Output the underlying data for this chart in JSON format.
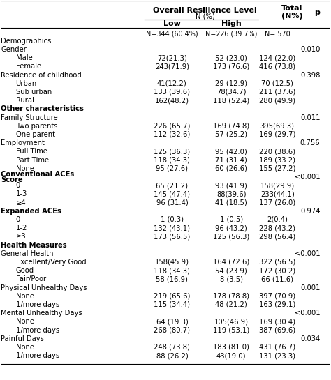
{
  "title1": "Overall Resilience Level",
  "title2": "N (%)",
  "col_low": "Low",
  "col_high": "High",
  "col_total": "Total\n(N%)",
  "col_p": "p",
  "subtitle_low": "N=344 (60.4%)",
  "subtitle_high": "N=226 (39.7%)",
  "subtitle_total": "N= 570",
  "rows": [
    {
      "label": "Demographics",
      "indent": 0,
      "bold": false,
      "low": "",
      "high": "",
      "total": "",
      "p": ""
    },
    {
      "label": "Gender",
      "indent": 0,
      "bold": false,
      "low": "",
      "high": "",
      "total": "",
      "p": "0.010"
    },
    {
      "label": "Male",
      "indent": 1,
      "bold": false,
      "low": "72(21.3)",
      "high": "52 (23.0)",
      "total": "124 (22.0)",
      "p": ""
    },
    {
      "label": "Female",
      "indent": 1,
      "bold": false,
      "low": "243(71.9)",
      "high": "173 (76.6)",
      "total": "416 (73.8)",
      "p": ""
    },
    {
      "label": "Residence of childhood",
      "indent": 0,
      "bold": false,
      "low": "",
      "high": "",
      "total": "",
      "p": "0.398"
    },
    {
      "label": "Urban",
      "indent": 1,
      "bold": false,
      "low": "41(12.2)",
      "high": "29 (12.9)",
      "total": "70 (12.5)",
      "p": ""
    },
    {
      "label": "Sub urban",
      "indent": 1,
      "bold": false,
      "low": "133 (39.6)",
      "high": "78(34.7)",
      "total": "211 (37.6)",
      "p": ""
    },
    {
      "label": "Rural",
      "indent": 1,
      "bold": false,
      "low": "162(48.2)",
      "high": "118 (52.4)",
      "total": "280 (49.9)",
      "p": ""
    },
    {
      "label": "Other characteristics",
      "indent": 0,
      "bold": true,
      "low": "",
      "high": "",
      "total": "",
      "p": ""
    },
    {
      "label": "Family Structure",
      "indent": 0,
      "bold": false,
      "low": "",
      "high": "",
      "total": "",
      "p": "0.011"
    },
    {
      "label": "Two parents",
      "indent": 1,
      "bold": false,
      "low": "226 (65.7)",
      "high": "169 (74.8)",
      "total": "395(69.3)",
      "p": ""
    },
    {
      "label": "One parent",
      "indent": 1,
      "bold": false,
      "low": "112 (32.6)",
      "high": "57 (25.2)",
      "total": "169 (29.7)",
      "p": ""
    },
    {
      "label": "Employment",
      "indent": 0,
      "bold": false,
      "low": "",
      "high": "",
      "total": "",
      "p": "0.756"
    },
    {
      "label": "Full Time",
      "indent": 1,
      "bold": false,
      "low": "125 (36.3)",
      "high": "95 (42.0)",
      "total": "220 (38.6)",
      "p": ""
    },
    {
      "label": "Part Time",
      "indent": 1,
      "bold": false,
      "low": "118 (34.3)",
      "high": "71 (31.4)",
      "total": "189 (33.2)",
      "p": ""
    },
    {
      "label": "None",
      "indent": 1,
      "bold": false,
      "low": "95 (27.6)",
      "high": "60 (26.6)",
      "total": "155 (27.2)",
      "p": ""
    },
    {
      "label": "Conventional ACEs\nScore",
      "indent": 0,
      "bold": true,
      "low": "",
      "high": "",
      "total": "",
      "p": "<0.001"
    },
    {
      "label": "0",
      "indent": 1,
      "bold": false,
      "low": "65 (21.2)",
      "high": "93 (41.9)",
      "total": "158(29.9)",
      "p": ""
    },
    {
      "label": "1-3",
      "indent": 1,
      "bold": false,
      "low": "145 (47.4)",
      "high": "88(39.6)",
      "total": "233(44.1)",
      "p": ""
    },
    {
      "label": "≥4",
      "indent": 1,
      "bold": false,
      "low": "96 (31.4)",
      "high": "41 (18.5)",
      "total": "137 (26.0)",
      "p": ""
    },
    {
      "label": "Expanded ACEs",
      "indent": 0,
      "bold": true,
      "low": "",
      "high": "",
      "total": "",
      "p": "0.974"
    },
    {
      "label": "0",
      "indent": 1,
      "bold": false,
      "low": "1 (0.3)",
      "high": "1 (0.5)",
      "total": "2(0.4)",
      "p": ""
    },
    {
      "label": "1-2",
      "indent": 1,
      "bold": false,
      "low": "132 (43.1)",
      "high": "96 (43.2)",
      "total": "228 (43.2)",
      "p": ""
    },
    {
      "label": "≥3",
      "indent": 1,
      "bold": false,
      "low": "173 (56.5)",
      "high": "125 (56.3)",
      "total": "298 (56.4)",
      "p": ""
    },
    {
      "label": "Health Measures",
      "indent": 0,
      "bold": true,
      "low": "",
      "high": "",
      "total": "",
      "p": ""
    },
    {
      "label": "General Health",
      "indent": 0,
      "bold": false,
      "low": "",
      "high": "",
      "total": "",
      "p": "<0.001"
    },
    {
      "label": "Excellent/Very Good",
      "indent": 1,
      "bold": false,
      "low": "158(45.9)",
      "high": "164 (72.6)",
      "total": "322 (56.5)",
      "p": ""
    },
    {
      "label": "Good",
      "indent": 1,
      "bold": false,
      "low": "118 (34.3)",
      "high": "54 (23.9)",
      "total": "172 (30.2)",
      "p": ""
    },
    {
      "label": "Fair/Poor",
      "indent": 1,
      "bold": false,
      "low": "58 (16.9)",
      "high": "8 (3.5)",
      "total": "66 (11.6)",
      "p": ""
    },
    {
      "label": "Physical Unhealthy Days",
      "indent": 0,
      "bold": false,
      "low": "",
      "high": "",
      "total": "",
      "p": "0.001"
    },
    {
      "label": "None",
      "indent": 1,
      "bold": false,
      "low": "219 (65.6)",
      "high": "178 (78.8)",
      "total": "397 (70.9)",
      "p": ""
    },
    {
      "label": "1/more days",
      "indent": 1,
      "bold": false,
      "low": "115 (34.4)",
      "high": "48 (21.2)",
      "total": "163 (29.1)",
      "p": ""
    },
    {
      "label": "Mental Unhealthy Days",
      "indent": 0,
      "bold": false,
      "low": "",
      "high": "",
      "total": "",
      "p": "<0.001"
    },
    {
      "label": "None",
      "indent": 1,
      "bold": false,
      "low": "64 (19.3)",
      "high": "105(46.9)",
      "total": "169 (30.4)",
      "p": ""
    },
    {
      "label": "1/more days",
      "indent": 1,
      "bold": false,
      "low": "268 (80.7)",
      "high": "119 (53.1)",
      "total": "387 (69.6)",
      "p": ""
    },
    {
      "label": "Painful Days",
      "indent": 0,
      "bold": false,
      "low": "",
      "high": "",
      "total": "",
      "p": "0.034"
    },
    {
      "label": "None",
      "indent": 1,
      "bold": false,
      "low": "248 (73.8)",
      "high": "183 (81.0)",
      "total": "431 (76.7)",
      "p": ""
    },
    {
      "label": "1/more days",
      "indent": 1,
      "bold": false,
      "low": "88 (26.2)",
      "high": "43(19.0)",
      "total": "131 (23.3)",
      "p": ""
    }
  ],
  "bg_color": "#ffffff",
  "text_color": "#000000",
  "font_size": 7.2,
  "header_font_size": 8.0
}
